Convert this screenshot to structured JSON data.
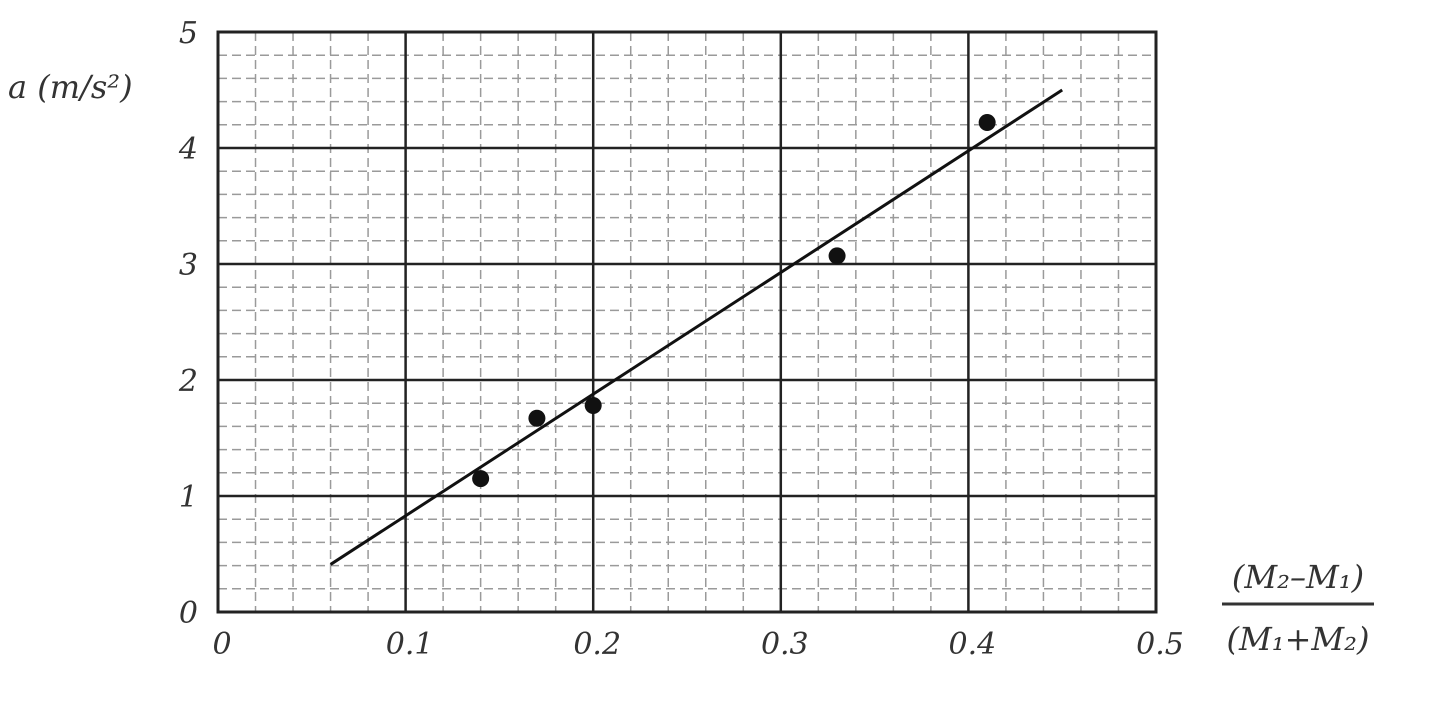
{
  "chart_data": {
    "type": "scatter",
    "title": "",
    "ylabel": "a (m/s²)",
    "xlabel_numerator": "(M₂–M₁)",
    "xlabel_denominator": "(M₁+M₂)",
    "xlim": [
      0,
      0.5
    ],
    "ylim": [
      0,
      5
    ],
    "x_ticks": [
      0,
      0.1,
      0.2,
      0.3,
      0.4,
      0.5
    ],
    "x_tick_labels": [
      "0",
      "0.1",
      "0.2",
      "0.3",
      "0.4",
      "0.5"
    ],
    "y_ticks": [
      0,
      1,
      2,
      3,
      4,
      5
    ],
    "y_tick_labels": [
      "0",
      "1",
      "2",
      "3",
      "4",
      "5"
    ],
    "grid": {
      "major": true,
      "minor": true,
      "minor_divisions": 5,
      "minor_style": "dashed"
    },
    "points": [
      {
        "x": 0.14,
        "y": 1.15
      },
      {
        "x": 0.17,
        "y": 1.67
      },
      {
        "x": 0.2,
        "y": 1.78
      },
      {
        "x": 0.33,
        "y": 3.07
      },
      {
        "x": 0.41,
        "y": 4.22
      }
    ],
    "fit_line": {
      "x": [
        0.06,
        0.45
      ],
      "y": [
        0.41,
        4.5
      ]
    },
    "colors": {
      "points": "#111111",
      "line": "#111111",
      "major_grid": "#222222",
      "minor_grid": "#9a9a9a"
    }
  }
}
